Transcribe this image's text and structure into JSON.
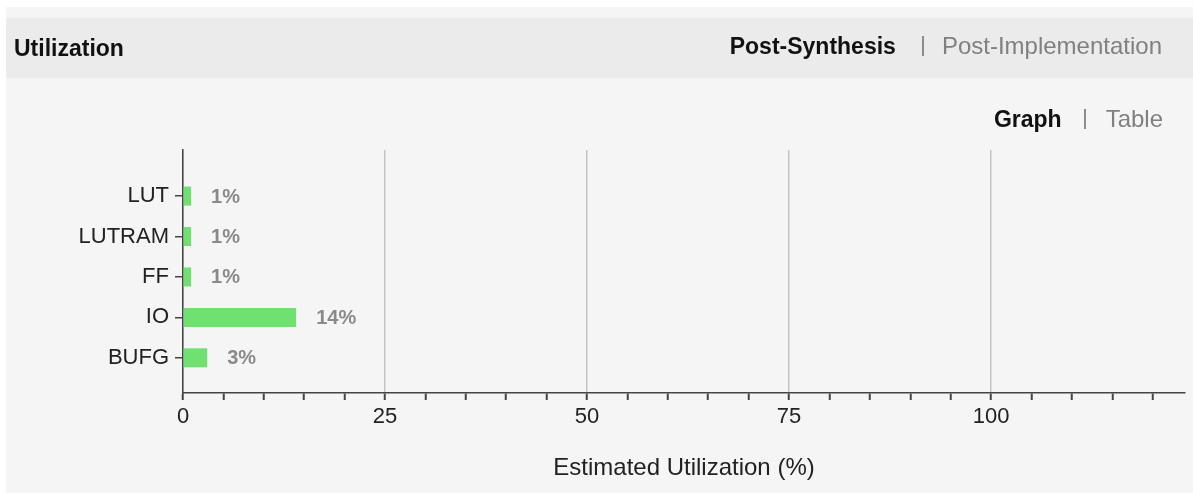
{
  "chart_data": {
    "type": "bar",
    "orientation": "horizontal",
    "title": "Utilization",
    "annotations": [
      "Post-Synthesis",
      "Post-Implementation",
      "Graph",
      "Table"
    ],
    "xlabel": "Estimated Utilization (%)",
    "categories": [
      "LUT",
      "LUTRAM",
      "FF",
      "IO",
      "BUFG"
    ],
    "values": [
      1,
      1,
      1,
      14,
      3
    ],
    "value_labels": [
      "1%",
      "1%",
      "1%",
      "14%",
      "3%"
    ],
    "color": "#70e070",
    "xlim": [
      0,
      124
    ],
    "xticks": [
      0,
      {
        "value": 5,
        "label": null
      },
      {
        "value": 10,
        "label": null
      },
      {
        "value": 15,
        "label": null
      },
      {
        "value": 20,
        "label": null
      },
      25,
      {
        "value": 30,
        "label": null
      },
      {
        "value": 35,
        "label": null
      },
      {
        "value": 40,
        "label": null
      },
      {
        "value": 45,
        "label": null
      },
      50,
      {
        "value": 55,
        "label": null
      },
      {
        "value": 60,
        "label": null
      },
      {
        "value": 65,
        "label": null
      },
      {
        "value": 70,
        "label": null
      },
      75,
      {
        "value": 80,
        "label": null
      },
      {
        "value": 85,
        "label": null
      },
      {
        "value": 90,
        "label": null
      },
      {
        "value": 95,
        "label": null
      },
      100,
      {
        "value": 105,
        "label": null
      },
      {
        "value": 110,
        "label": null
      },
      {
        "value": 115,
        "label": null
      },
      {
        "value": 120,
        "label": null
      }
    ],
    "grid": "x"
  }
}
